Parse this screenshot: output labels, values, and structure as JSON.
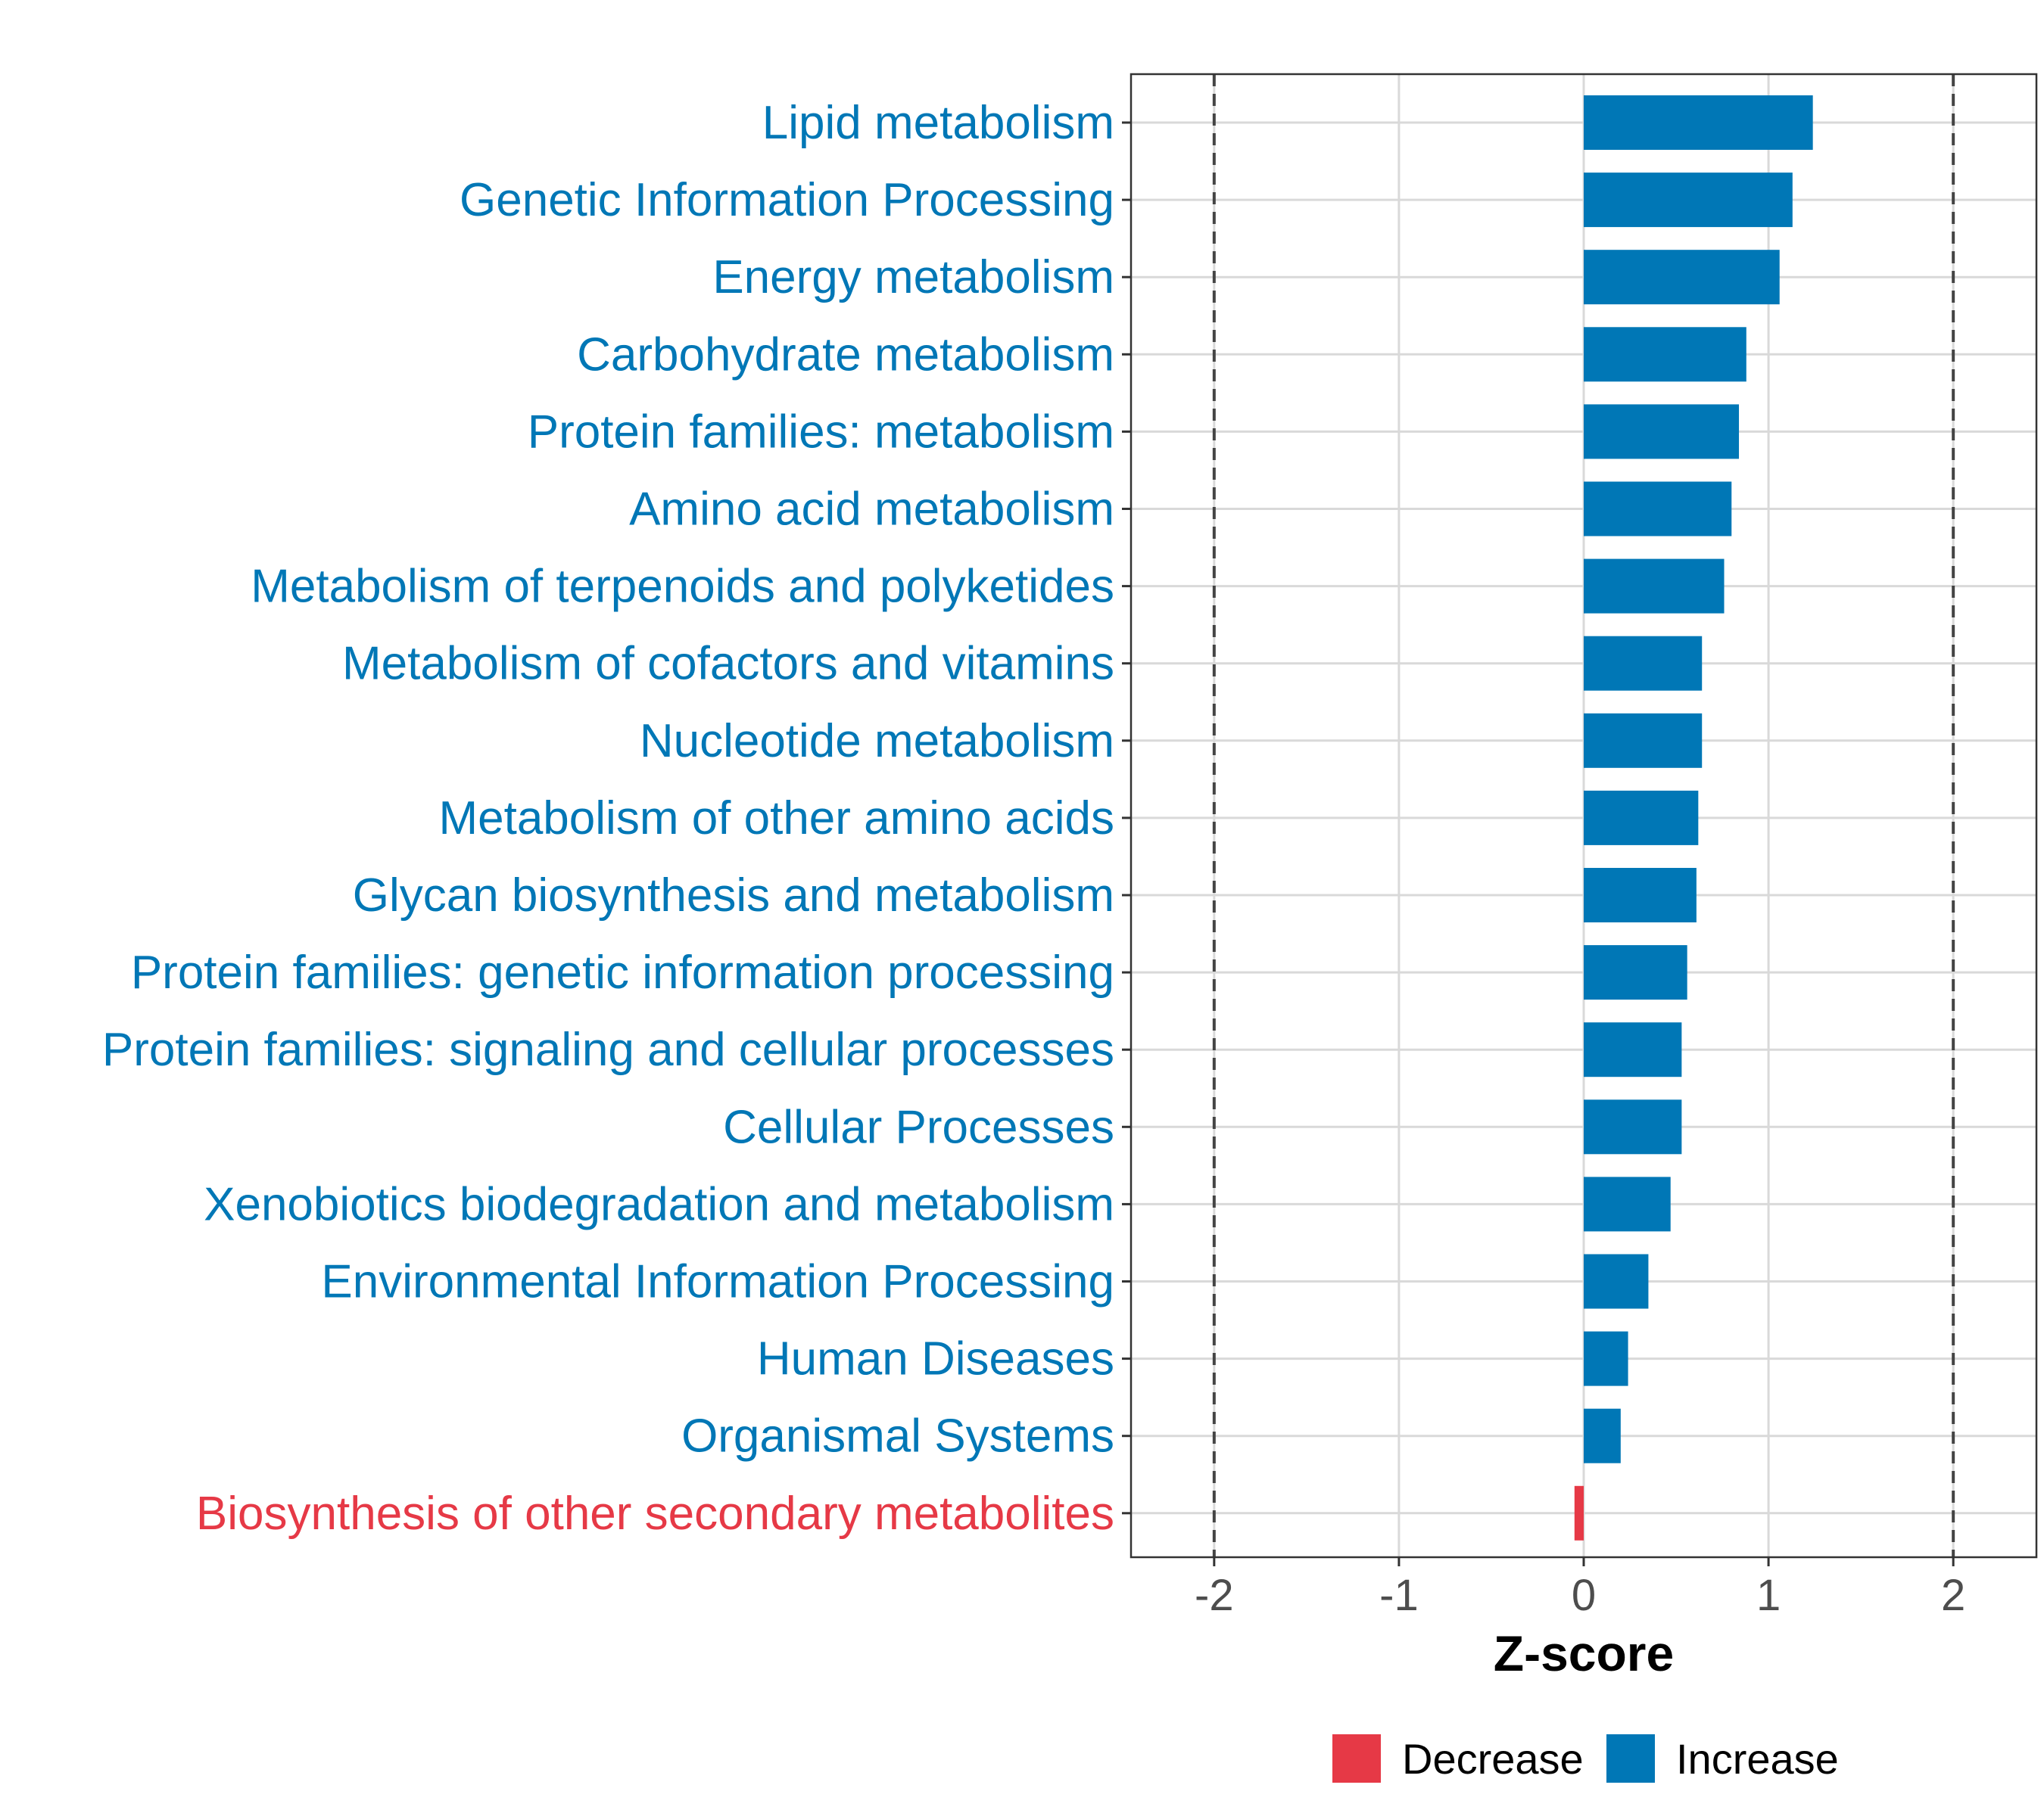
{
  "chart_data": {
    "type": "bar",
    "orientation": "horizontal",
    "title": "",
    "xlabel": "Z-score",
    "ylabel": "",
    "xlim": [
      -2.45,
      2.45
    ],
    "x_ticks": [
      -2,
      -1,
      0,
      1,
      2
    ],
    "x_tick_labels": [
      "-2",
      "-1",
      "0",
      "1",
      "2"
    ],
    "reference_lines": [
      -2,
      2
    ],
    "grid": true,
    "legend_position": "bottom",
    "colors": {
      "Decrease": "#e63946",
      "Increase": "#0077b6"
    },
    "categories": [
      "Lipid metabolism",
      "Genetic Information Processing",
      "Energy metabolism",
      "Carbohydrate metabolism",
      "Protein families: metabolism",
      "Amino acid metabolism",
      "Metabolism of terpenoids and polyketides",
      "Metabolism of cofactors and vitamins",
      "Nucleotide metabolism",
      "Metabolism of other amino acids",
      "Glycan biosynthesis and metabolism",
      "Protein families: genetic information processing",
      "Protein families: signaling and cellular processes",
      "Cellular Processes",
      "Xenobiotics biodegradation and metabolism",
      "Environmental Information Processing",
      "Human Diseases",
      "Organismal Systems",
      "Biosynthesis of other secondary metabolites"
    ],
    "values": [
      1.24,
      1.13,
      1.06,
      0.88,
      0.84,
      0.8,
      0.76,
      0.64,
      0.64,
      0.62,
      0.61,
      0.56,
      0.53,
      0.53,
      0.47,
      0.35,
      0.24,
      0.2,
      -0.05
    ],
    "direction": [
      "Increase",
      "Increase",
      "Increase",
      "Increase",
      "Increase",
      "Increase",
      "Increase",
      "Increase",
      "Increase",
      "Increase",
      "Increase",
      "Increase",
      "Increase",
      "Increase",
      "Increase",
      "Increase",
      "Increase",
      "Increase",
      "Decrease"
    ],
    "legend": [
      "Decrease",
      "Increase"
    ]
  }
}
